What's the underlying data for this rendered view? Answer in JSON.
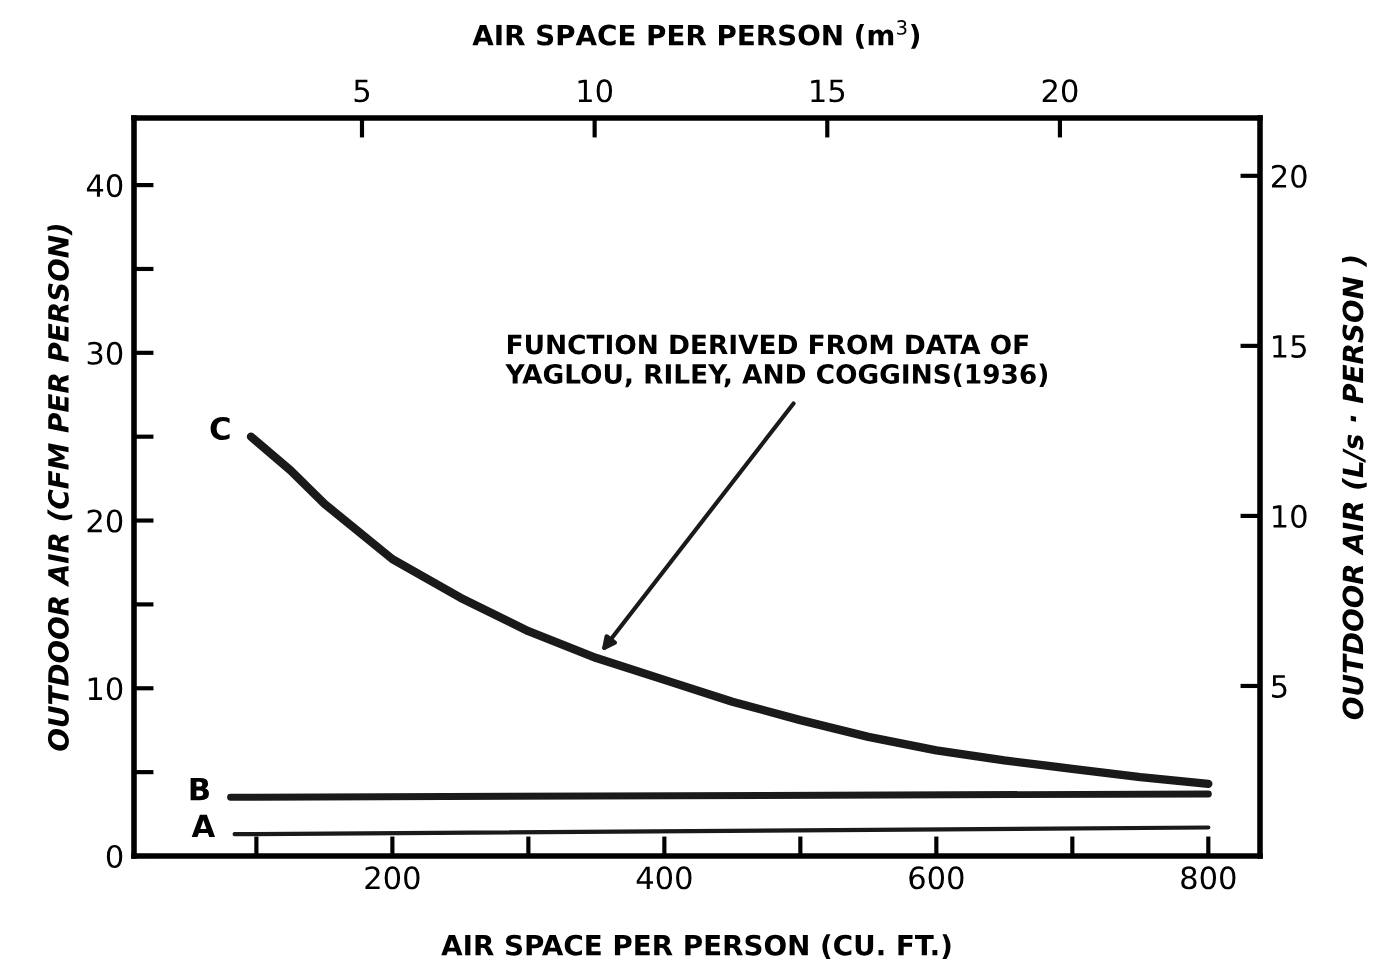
{
  "chart_data": {
    "type": "line",
    "xlabel": "AIR SPACE PER PERSON (CU. FT.)",
    "x2label": "AIR SPACE PER PERSON (m$^{3}$)",
    "ylabel": "OUTDOOR AIR (CFM PER PERSON)",
    "y2label": "OUTDOOR AIR (L/s · PERSON )",
    "xlim": [
      10,
      838
    ],
    "xticks": [
      {
        "value": 100,
        "label": null
      },
      200,
      {
        "value": 300,
        "label": null
      },
      400,
      {
        "value": 500,
        "label": null
      },
      600,
      {
        "value": 700,
        "label": null
      },
      800
    ],
    "ylim": [
      0,
      44
    ],
    "yticks": [
      0,
      {
        "value": 5,
        "label": null
      },
      10,
      {
        "value": 15,
        "label": null
      },
      20,
      {
        "value": 25,
        "label": null
      },
      30,
      {
        "value": 35,
        "label": null
      },
      40
    ],
    "y2lim": [
      0,
      21.7
    ],
    "y2ticks": [
      5,
      10,
      15,
      20
    ],
    "x2lim": [
      0.1,
      24.3
    ],
    "x2ticks": [
      5,
      10,
      15,
      20
    ],
    "series": [
      {
        "color": "#1a1a1a",
        "x": [
          96,
          125,
          150,
          200,
          250,
          300,
          350,
          400,
          450,
          500,
          550,
          600,
          650,
          700,
          750,
          800
        ],
        "values": [
          25,
          23,
          21,
          17.7,
          15.4,
          13.4,
          11.8,
          10.5,
          9.2,
          8.1,
          7.1,
          6.3,
          5.7,
          5.2,
          4.7,
          4.3
        ]
      },
      {
        "color": "#1a1a1a",
        "x": [
          81,
          800
        ],
        "values": [
          3.5,
          3.7
        ]
      },
      {
        "color": "#1a1a1a",
        "x": [
          84,
          800
        ],
        "values": [
          1.3,
          1.7
        ]
      }
    ],
    "annotations": [
      {
        "text": "C",
        "x": 96,
        "y": 25
      },
      {
        "text": "B",
        "x": 81,
        "y": 3.5
      },
      {
        "text": "A",
        "x": 84,
        "y": 1.3
      },
      "FUNCTION DERIVED FROM DATA OF\nYAGLOU, RILEY, AND COGGINS(1936)"
    ],
    "grid": false,
    "legend": false,
    "marker": "none",
    "line_style": "solid"
  }
}
